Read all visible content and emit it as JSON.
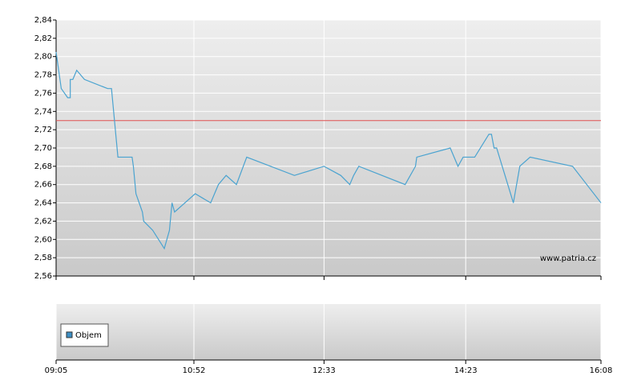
{
  "chart_data": {
    "type": "line",
    "x": [
      545,
      547,
      549,
      554,
      556,
      556,
      558,
      561,
      567,
      585,
      588,
      590,
      593,
      604,
      605,
      607,
      612,
      613,
      620,
      629,
      633,
      635,
      637,
      653,
      665,
      671,
      677,
      685,
      693,
      730,
      753,
      766,
      773,
      776,
      780,
      816,
      824,
      825,
      851,
      857,
      861,
      870,
      881,
      883,
      885,
      887,
      900,
      905,
      913,
      946,
      968
    ],
    "series": [
      {
        "color": "#4aa3d0",
        "values": [
          2.805,
          2.785,
          2.765,
          2.755,
          2.755,
          2.775,
          2.775,
          2.785,
          2.775,
          2.765,
          2.765,
          2.735,
          2.69,
          2.69,
          2.68,
          2.65,
          2.63,
          2.62,
          2.61,
          2.59,
          2.61,
          2.64,
          2.63,
          2.65,
          2.64,
          2.66,
          2.67,
          2.66,
          2.69,
          2.67,
          2.68,
          2.67,
          2.66,
          2.67,
          2.68,
          2.66,
          2.68,
          2.69,
          2.7,
          2.68,
          2.69,
          2.69,
          2.715,
          2.715,
          2.7,
          2.7,
          2.64,
          2.68,
          2.69,
          2.68,
          2.64
        ]
      }
    ],
    "reference_line": {
      "value": 2.73,
      "color": "#e05050"
    },
    "xlim": [
      545,
      968
    ],
    "xticks": [
      {
        "value": 545,
        "label": "09:05"
      },
      {
        "value": 652,
        "label": "10:52"
      },
      {
        "value": 753,
        "label": "12:33"
      },
      {
        "value": 863,
        "label": "14:23"
      },
      {
        "value": 968,
        "label": "16:08"
      }
    ],
    "ylim": [
      2.56,
      2.84
    ],
    "yticks": [
      {
        "value": 2.56,
        "label": "2,56"
      },
      {
        "value": 2.58,
        "label": "2,58"
      },
      {
        "value": 2.6,
        "label": "2,60"
      },
      {
        "value": 2.62,
        "label": "2,62"
      },
      {
        "value": 2.64,
        "label": "2,64"
      },
      {
        "value": 2.66,
        "label": "2,66"
      },
      {
        "value": 2.68,
        "label": "2,68"
      },
      {
        "value": 2.7,
        "label": "2,70"
      },
      {
        "value": 2.72,
        "label": "2,72"
      },
      {
        "value": 2.74,
        "label": "2,74"
      },
      {
        "value": 2.76,
        "label": "2,76"
      },
      {
        "value": 2.78,
        "label": "2,78"
      },
      {
        "value": 2.8,
        "label": "2,80"
      },
      {
        "value": 2.82,
        "label": "2,82"
      },
      {
        "value": 2.84,
        "label": "2,84"
      }
    ],
    "grid": true,
    "watermark": "www.patria.cz",
    "volume_panel": {
      "legend": "Objem",
      "color": "#3d8fc4"
    }
  }
}
